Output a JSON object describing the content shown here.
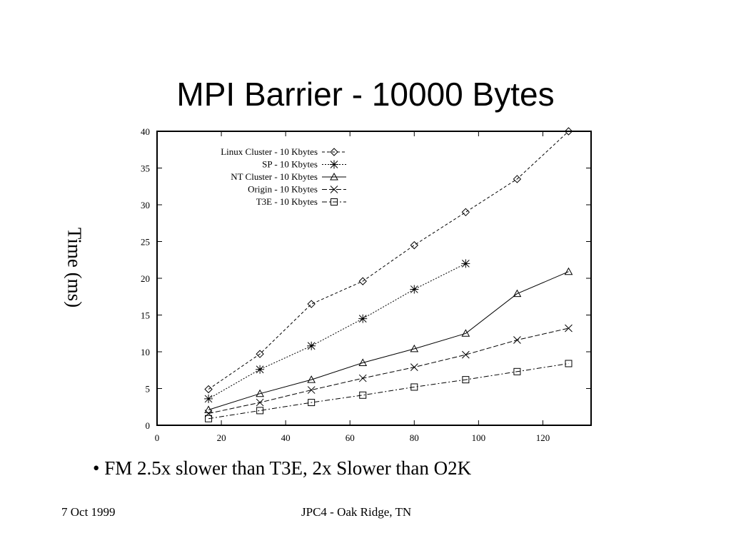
{
  "slide": {
    "title": "MPI Barrier - 10000 Bytes",
    "bullet": "• FM 2.5x slower than T3E, 2x Slower than O2K",
    "footer_left": "7 Oct 1999",
    "footer_center": "JPC4 - Oak Ridge, TN"
  },
  "chart_data": {
    "type": "line",
    "title": "MPI Barrier - 10000 Bytes",
    "xlabel": "",
    "ylabel": "Time (ms)",
    "xlim": [
      0,
      135
    ],
    "ylim": [
      0,
      40
    ],
    "xticks": [
      0,
      20,
      40,
      60,
      80,
      100,
      120
    ],
    "yticks": [
      0,
      5,
      10,
      15,
      20,
      25,
      30,
      35,
      40
    ],
    "grid": false,
    "legend_position": "top-left",
    "series": [
      {
        "name": "Linux Cluster - 10 Kbytes",
        "marker": "diamond",
        "dash": "4,3",
        "x": [
          16,
          32,
          48,
          64,
          80,
          96,
          112,
          128
        ],
        "y": [
          4.9,
          9.7,
          16.5,
          19.6,
          24.5,
          29.0,
          33.5,
          40.0
        ]
      },
      {
        "name": "SP - 10 Kbytes",
        "marker": "star",
        "dash": "2,2",
        "x": [
          16,
          32,
          48,
          64,
          80,
          96
        ],
        "y": [
          3.6,
          7.6,
          10.8,
          14.5,
          18.5,
          22.0
        ]
      },
      {
        "name": "NT Cluster - 10 Kbytes",
        "marker": "triangle",
        "dash": "",
        "x": [
          16,
          32,
          48,
          64,
          80,
          96,
          112,
          128
        ],
        "y": [
          2.1,
          4.3,
          6.2,
          8.5,
          10.4,
          12.5,
          17.9,
          20.9
        ]
      },
      {
        "name": "Origin - 10 Kbytes",
        "marker": "x",
        "dash": "7,3",
        "x": [
          16,
          32,
          48,
          64,
          80,
          96,
          112,
          128
        ],
        "y": [
          1.6,
          3.1,
          4.8,
          6.4,
          7.9,
          9.6,
          11.6,
          13.2
        ]
      },
      {
        "name": "T3E - 10 Kbytes",
        "marker": "square",
        "dash": "7,3,2,3",
        "x": [
          16,
          32,
          48,
          64,
          80,
          96,
          112,
          128
        ],
        "y": [
          0.9,
          2.0,
          3.1,
          4.1,
          5.2,
          6.2,
          7.3,
          8.4
        ]
      }
    ]
  }
}
